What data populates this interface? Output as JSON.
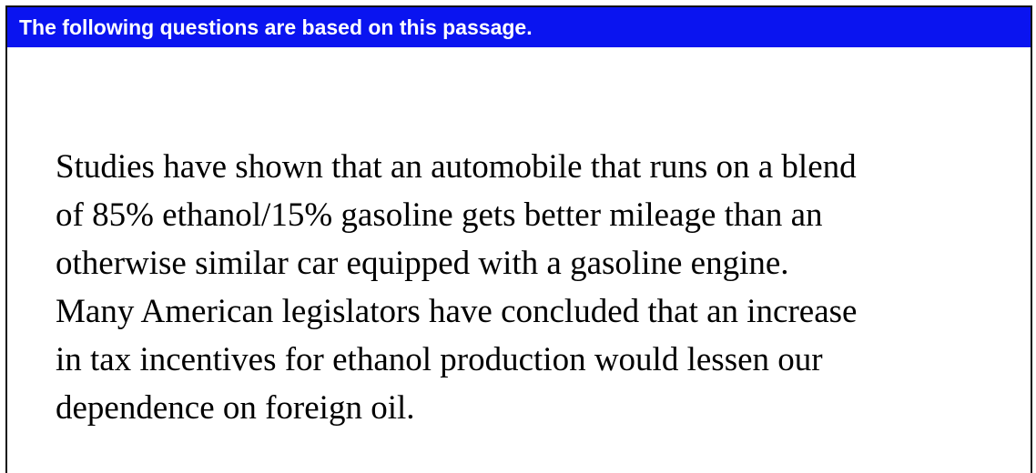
{
  "header": {
    "title": "The following questions are based on this passage."
  },
  "passage": {
    "text": "Studies have shown that an automobile that runs on a blend\nof 85% ethanol/15% gasoline gets better mileage than an\notherwise similar car equipped with a gasoline engine.\nMany American legislators have concluded that an increase\nin tax incentives for ethanol production would lessen our\ndependence on foreign oil."
  },
  "colors": {
    "header_background": "#0a14f0",
    "header_text": "#ffffff",
    "border": "#111111",
    "body_text": "#000000"
  }
}
